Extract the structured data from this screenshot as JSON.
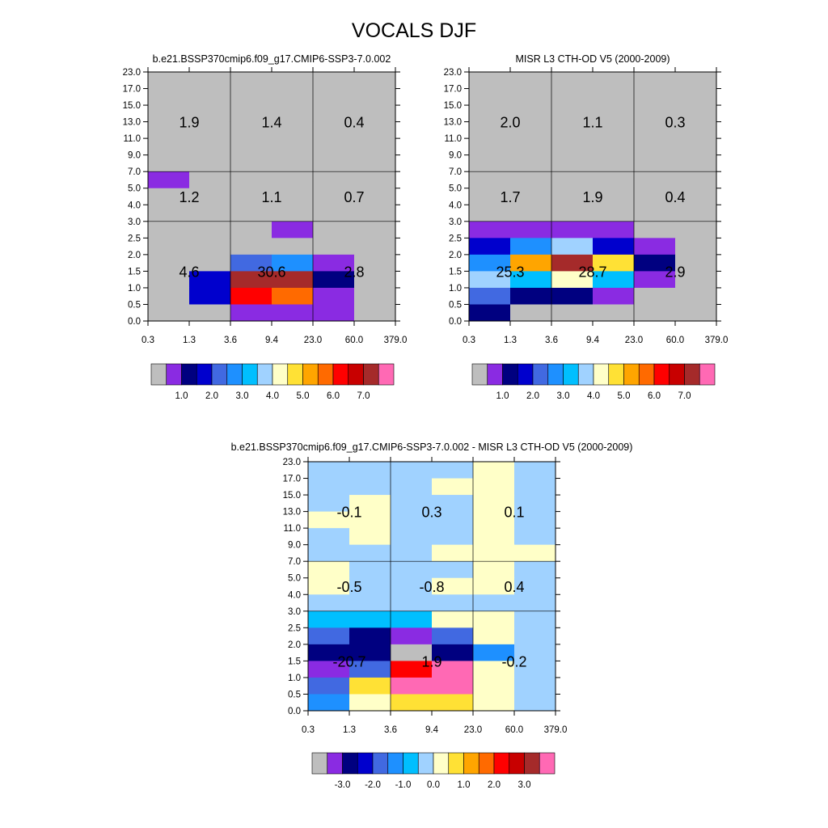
{
  "title": "VOCALS DJF",
  "chart_data": [
    {
      "type": "heatmap",
      "panel": "model",
      "title": "b.e21.BSSP370cmip6.f09_g17.CMIP6-SSP3-7.0.002",
      "x_ticks": [
        "0.3",
        "1.3",
        "3.6",
        "9.4",
        "23.0",
        "60.0",
        "379.0"
      ],
      "y_ticks": [
        "0.0",
        "0.5",
        "1.0",
        "1.5",
        "2.0",
        "2.5",
        "3.0",
        "4.0",
        "5.0",
        "7.0",
        "9.0",
        "11.0",
        "13.0",
        "15.0",
        "17.0",
        "23.0"
      ],
      "cells_note": "rows listed from top (23.0-17.0) to bottom (0.5-0.0); columns 0.3-1.3 ... 60.0-379.0; values are color-bin indices into the colorbar",
      "cells": [
        [
          0,
          0,
          0,
          0,
          0,
          0
        ],
        [
          0,
          0,
          0,
          0,
          0,
          0
        ],
        [
          0,
          0,
          0,
          0,
          0,
          0
        ],
        [
          0,
          0,
          0,
          0,
          0,
          0
        ],
        [
          0,
          0,
          0,
          0,
          0,
          0
        ],
        [
          0,
          0,
          0,
          0,
          0,
          0
        ],
        [
          1,
          0,
          0,
          0,
          0,
          0
        ],
        [
          0,
          0,
          0,
          0,
          0,
          0
        ],
        [
          0,
          0,
          0,
          0,
          0,
          0
        ],
        [
          0,
          0,
          0,
          1,
          0,
          0
        ],
        [
          0,
          0,
          0,
          0,
          0,
          0
        ],
        [
          0,
          0,
          4,
          5,
          1,
          0
        ],
        [
          0,
          3,
          14,
          14,
          2,
          0
        ],
        [
          0,
          3,
          12,
          11,
          1,
          0
        ],
        [
          0,
          0,
          1,
          1,
          1,
          0
        ]
      ],
      "summary_values": [
        [
          "1.9",
          "1.4",
          "0.4"
        ],
        [
          "1.2",
          "1.1",
          "0.7"
        ],
        [
          "4.6",
          "30.6",
          "2.8"
        ]
      ],
      "colorbar": {
        "colors": [
          "#bebebe",
          "#8a2be2",
          "#000080",
          "#0000cd",
          "#4169e1",
          "#1e90ff",
          "#00bfff",
          "#a0d2ff",
          "#ffffc8",
          "#ffe135",
          "#ffa500",
          "#ff6a00",
          "#ff0000",
          "#c80000",
          "#a52a2a",
          "#ff69b4"
        ],
        "labels": [
          "1.0",
          "2.0",
          "3.0",
          "4.0",
          "5.0",
          "6.0",
          "7.0"
        ]
      }
    },
    {
      "type": "heatmap",
      "panel": "obs",
      "title": "MISR L3 CTH-OD V5 (2000-2009)",
      "x_ticks": [
        "0.3",
        "1.3",
        "3.6",
        "9.4",
        "23.0",
        "60.0",
        "379.0"
      ],
      "y_ticks": [
        "0.0",
        "0.5",
        "1.0",
        "1.5",
        "2.0",
        "2.5",
        "3.0",
        "4.0",
        "5.0",
        "7.0",
        "9.0",
        "11.0",
        "13.0",
        "15.0",
        "17.0",
        "23.0"
      ],
      "cells_note": "rows listed from top (23.0-17.0) to bottom (0.5-0.0); values are color-bin indices into the colorbar",
      "cells": [
        [
          0,
          0,
          0,
          0,
          0,
          0
        ],
        [
          0,
          0,
          0,
          0,
          0,
          0
        ],
        [
          0,
          0,
          0,
          0,
          0,
          0
        ],
        [
          0,
          0,
          0,
          0,
          0,
          0
        ],
        [
          0,
          0,
          0,
          0,
          0,
          0
        ],
        [
          0,
          0,
          0,
          0,
          0,
          0
        ],
        [
          0,
          0,
          0,
          0,
          0,
          0
        ],
        [
          0,
          0,
          0,
          0,
          0,
          0
        ],
        [
          0,
          0,
          0,
          0,
          0,
          0
        ],
        [
          1,
          1,
          1,
          1,
          0,
          0
        ],
        [
          3,
          5,
          7,
          3,
          1,
          0
        ],
        [
          5,
          10,
          14,
          9,
          2,
          0
        ],
        [
          7,
          6,
          8,
          6,
          1,
          0
        ],
        [
          4,
          2,
          2,
          1,
          0,
          0
        ],
        [
          2,
          0,
          0,
          0,
          0,
          0
        ]
      ],
      "summary_values": [
        [
          "2.0",
          "1.1",
          "0.3"
        ],
        [
          "1.7",
          "1.9",
          "0.4"
        ],
        [
          "25.3",
          "28.7",
          "2.9"
        ]
      ],
      "colorbar": {
        "colors": [
          "#bebebe",
          "#8a2be2",
          "#000080",
          "#0000cd",
          "#4169e1",
          "#1e90ff",
          "#00bfff",
          "#a0d2ff",
          "#ffffc8",
          "#ffe135",
          "#ffa500",
          "#ff6a00",
          "#ff0000",
          "#c80000",
          "#a52a2a",
          "#ff69b4"
        ],
        "labels": [
          "1.0",
          "2.0",
          "3.0",
          "4.0",
          "5.0",
          "6.0",
          "7.0"
        ]
      }
    },
    {
      "type": "heatmap",
      "panel": "diff",
      "title": "b.e21.BSSP370cmip6.f09_g17.CMIP6-SSP3-7.0.002 - MISR L3 CTH-OD V5 (2000-2009)",
      "x_ticks": [
        "0.3",
        "1.3",
        "3.6",
        "9.4",
        "23.0",
        "60.0",
        "379.0"
      ],
      "y_ticks": [
        "0.0",
        "0.5",
        "1.0",
        "1.5",
        "2.0",
        "2.5",
        "3.0",
        "4.0",
        "5.0",
        "7.0",
        "9.0",
        "11.0",
        "13.0",
        "15.0",
        "17.0",
        "23.0"
      ],
      "cells_note": "rows listed from top (23.0-17.0) to bottom (0.5-0.0); values are color-bin indices into the colorbar",
      "cells": [
        [
          7,
          7,
          7,
          7,
          8,
          7
        ],
        [
          7,
          7,
          7,
          8,
          8,
          7
        ],
        [
          7,
          8,
          7,
          7,
          8,
          7
        ],
        [
          8,
          8,
          7,
          7,
          8,
          7
        ],
        [
          7,
          8,
          7,
          7,
          8,
          7
        ],
        [
          7,
          7,
          7,
          8,
          8,
          8
        ],
        [
          8,
          7,
          7,
          7,
          8,
          7
        ],
        [
          8,
          7,
          7,
          8,
          8,
          7
        ],
        [
          7,
          7,
          7,
          7,
          7,
          7
        ],
        [
          6,
          6,
          6,
          8,
          8,
          7
        ],
        [
          4,
          2,
          1,
          4,
          8,
          7
        ],
        [
          2,
          2,
          0,
          2,
          5,
          7
        ],
        [
          1,
          4,
          12,
          15,
          8,
          7
        ],
        [
          4,
          9,
          15,
          15,
          8,
          7
        ],
        [
          5,
          8,
          9,
          9,
          8,
          7
        ]
      ],
      "summary_values": [
        [
          "-0.1",
          "0.3",
          "0.1"
        ],
        [
          "-0.5",
          "-0.8",
          "0.4"
        ],
        [
          "-20.7",
          "1.9",
          "-0.2"
        ]
      ],
      "colorbar": {
        "colors": [
          "#bebebe",
          "#8a2be2",
          "#000080",
          "#0000cd",
          "#4169e1",
          "#1e90ff",
          "#00bfff",
          "#a0d2ff",
          "#ffffc8",
          "#ffe135",
          "#ffa500",
          "#ff6a00",
          "#ff0000",
          "#c80000",
          "#a52a2a",
          "#ff69b4"
        ],
        "labels": [
          "-3.0",
          "-2.0",
          "-1.0",
          "0.0",
          "1.0",
          "2.0",
          "3.0"
        ]
      }
    }
  ]
}
